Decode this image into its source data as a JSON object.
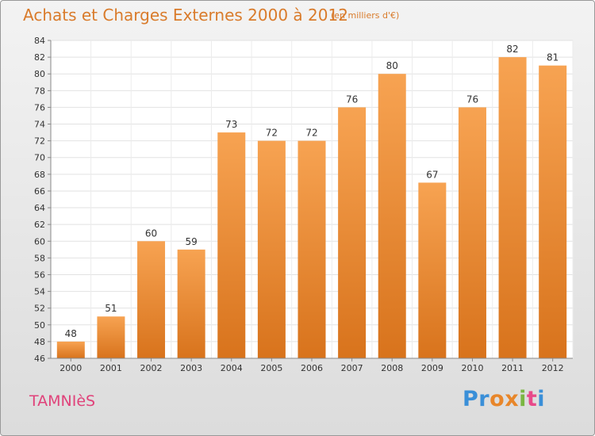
{
  "header": {
    "title": "Achats et Charges Externes 2000 à 2012",
    "unit": "(en milliers d'€)"
  },
  "footer": {
    "place": "TAMNIèS",
    "brand_letters": [
      {
        "char": "P",
        "color": "#3a8fd8"
      },
      {
        "char": "r",
        "color": "#3a8fd8"
      },
      {
        "char": "o",
        "color": "#e8862a"
      },
      {
        "char": "x",
        "color": "#e8862a"
      },
      {
        "char": "i",
        "color": "#7ab642"
      },
      {
        "char": "t",
        "color": "#e84a8a"
      },
      {
        "char": "i",
        "color": "#3a8fd8"
      }
    ]
  },
  "colors": {
    "bar_top": "#f7a352",
    "bar_bottom": "#d8731c",
    "title": "#d97b2b",
    "place": "#e0427a"
  },
  "chart_data": {
    "type": "bar",
    "categories": [
      "2000",
      "2001",
      "2002",
      "2003",
      "2004",
      "2005",
      "2006",
      "2007",
      "2008",
      "2009",
      "2010",
      "2011",
      "2012"
    ],
    "values": [
      48,
      51,
      60,
      59,
      73,
      72,
      72,
      76,
      80,
      67,
      76,
      82,
      81
    ],
    "title": "Achats et Charges Externes 2000 à 2012",
    "ylim": [
      46,
      84
    ],
    "yticks": [
      46,
      48,
      50,
      52,
      54,
      56,
      58,
      60,
      62,
      64,
      66,
      68,
      70,
      72,
      74,
      76,
      78,
      80,
      82,
      84
    ],
    "grid": true,
    "legend": "none"
  }
}
